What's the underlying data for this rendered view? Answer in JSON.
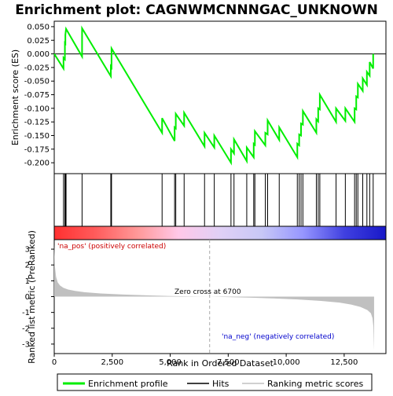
{
  "chart_data": {
    "type": "line",
    "title": "Enrichment plot: CAGNWMCNNNGAC_UNKNOWN",
    "xlabel": "Rank in Ordered Dataset",
    "ylabel_top": "Enrichment score (ES)",
    "ylabel_bottom": "Ranked list metric (PreRanked)",
    "x_range": [
      0,
      14300
    ],
    "es_range": [
      -0.22,
      0.06
    ],
    "metric_range": [
      -3.6,
      3.6
    ],
    "x_ticks": [
      0,
      2500,
      5000,
      7500,
      10000,
      12500
    ],
    "x_tick_labels": [
      "0",
      "2,500",
      "5,000",
      "7,500",
      "10,000",
      "12,500"
    ],
    "es_ticks": [
      0.05,
      0.025,
      0.0,
      -0.025,
      -0.05,
      -0.075,
      -0.1,
      -0.125,
      -0.15,
      -0.175,
      -0.2
    ],
    "es_tick_labels": [
      "0.050",
      "0.025",
      "0.000",
      "-0.025",
      "-0.050",
      "-0.075",
      "-0.100",
      "-0.125",
      "-0.150",
      "-0.175",
      "-0.200"
    ],
    "metric_ticks": [
      3,
      2,
      1,
      0,
      -1,
      -2,
      -3
    ],
    "metric_tick_labels": [
      "3",
      "2",
      "1",
      "0",
      "-1",
      "-2",
      "-3"
    ],
    "hits": [
      400,
      460,
      480,
      510,
      1200,
      2440,
      2470,
      4650,
      5190,
      5240,
      5600,
      6480,
      6900,
      7620,
      7750,
      8300,
      8600,
      8650,
      9100,
      9200,
      9700,
      10480,
      10560,
      10640,
      10720,
      11300,
      11380,
      11450,
      12150,
      12550,
      12950,
      13020,
      13090,
      13300,
      13480,
      13600,
      13750
    ],
    "es_curve": {
      "x": [
        0,
        400,
        400,
        460,
        460,
        480,
        480,
        510,
        510,
        1200,
        1200,
        2440,
        2440,
        2470,
        2470,
        4650,
        4650,
        5190,
        5190,
        5240,
        5240,
        5600,
        5600,
        6480,
        6480,
        6900,
        6900,
        7620,
        7620,
        7750,
        7750,
        8300,
        8300,
        8600,
        8600,
        8650,
        8650,
        9100,
        9100,
        9200,
        9200,
        9700,
        9700,
        10480,
        10480,
        10560,
        10560,
        10640,
        10640,
        10720,
        10720,
        11300,
        11300,
        11380,
        11380,
        11450,
        11450,
        12150,
        12150,
        12550,
        12550,
        12950,
        12950,
        13020,
        13020,
        13090,
        13090,
        13300,
        13300,
        13480,
        13480,
        13600,
        13600,
        13750,
        13750
      ],
      "y": [
        0.0,
        -0.027,
        -0.007,
        -0.01,
        0.02,
        0.019,
        0.035,
        0.046,
        0.046,
        -0.005,
        0.047,
        -0.041,
        -0.023,
        -0.025,
        0.01,
        -0.145,
        -0.118,
        -0.16,
        -0.135,
        -0.137,
        -0.11,
        -0.132,
        -0.108,
        -0.17,
        -0.145,
        -0.172,
        -0.15,
        -0.2,
        -0.175,
        -0.183,
        -0.157,
        -0.197,
        -0.172,
        -0.19,
        -0.165,
        -0.167,
        -0.142,
        -0.168,
        -0.145,
        -0.148,
        -0.122,
        -0.158,
        -0.135,
        -0.19,
        -0.165,
        -0.168,
        -0.148,
        -0.15,
        -0.128,
        -0.13,
        -0.105,
        -0.145,
        -0.12,
        -0.124,
        -0.1,
        -0.102,
        -0.075,
        -0.125,
        -0.1,
        -0.123,
        -0.1,
        -0.125,
        -0.1,
        -0.102,
        -0.078,
        -0.08,
        -0.055,
        -0.068,
        -0.045,
        -0.057,
        -0.033,
        -0.04,
        -0.015,
        -0.027,
        0.0
      ]
    },
    "metric_curve": {
      "x": [
        0,
        30,
        80,
        150,
        250,
        400,
        600,
        900,
        1300,
        2000,
        3000,
        4000,
        5000,
        6000,
        6700,
        7500,
        8500,
        9500,
        10500,
        11500,
        12300,
        12800,
        13200,
        13500,
        13650,
        13720,
        13760,
        13790
      ],
      "y": [
        3.3,
        1.9,
        1.25,
        0.9,
        0.7,
        0.55,
        0.45,
        0.36,
        0.28,
        0.2,
        0.13,
        0.08,
        0.04,
        0.01,
        0.0,
        -0.03,
        -0.07,
        -0.12,
        -0.18,
        -0.27,
        -0.38,
        -0.5,
        -0.65,
        -0.85,
        -1.05,
        -1.35,
        -1.9,
        -3.4
      ]
    },
    "zero_cross_rank": 6700,
    "zero_cross_label": "Zero cross at 6700",
    "pos_label": "'na_pos' (positively correlated)",
    "neg_label": "'na_neg' (negatively correlated)",
    "legend": [
      "Enrichment profile",
      "Hits",
      "Ranking metric scores"
    ],
    "colors": {
      "es_line": "#00ee00",
      "hits": "#000000",
      "metric_fill": "#c0c0c0",
      "pos_label": "#cc0000",
      "neg_label": "#0000cc",
      "zero_line": "#aaaaaa",
      "panel_border": "#000000",
      "bar_stops": [
        "#ff3030",
        "#ff5c5c",
        "#ff9898",
        "#ffc8e8",
        "#e0d0f6",
        "#c8c8f6",
        "#9696ff",
        "#4040e0",
        "#1818c8"
      ]
    }
  }
}
